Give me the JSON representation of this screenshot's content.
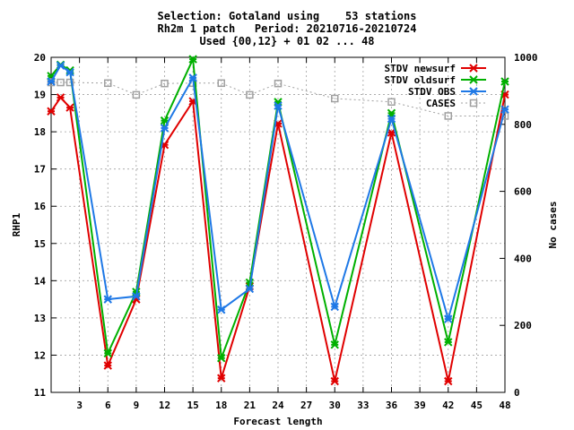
{
  "chart_data": {
    "type": "line",
    "title_lines": [
      "Selection: Gotaland using    53 stations",
      "Rh2m 1 patch   Period: 20210716-20210724",
      "Used {00,12} + 01 02 ... 48"
    ],
    "xlabel": "Forecast length",
    "ylabel": "RHP1",
    "y2label": "No cases",
    "xlim": [
      0,
      48
    ],
    "ylim": [
      11,
      20
    ],
    "y2lim": [
      0,
      1000
    ],
    "xticks": [
      3,
      6,
      9,
      12,
      15,
      18,
      21,
      24,
      27,
      30,
      33,
      36,
      39,
      42,
      45,
      48
    ],
    "yticks": [
      11,
      12,
      13,
      14,
      15,
      16,
      17,
      18,
      19,
      20
    ],
    "y2ticks": [
      0,
      200,
      400,
      600,
      800,
      1000
    ],
    "grid": true,
    "legend_position": "top-right",
    "x": [
      0,
      1,
      2,
      6,
      9,
      12,
      15,
      18,
      21,
      24,
      30,
      36,
      42,
      48
    ],
    "series": [
      {
        "name": "STDV newsurf",
        "color": "#e00000",
        "axis": "left",
        "values": [
          18.55,
          18.92,
          18.65,
          11.72,
          13.5,
          17.65,
          18.82,
          11.38,
          13.85,
          18.22,
          11.3,
          17.98,
          11.3,
          19.0
        ]
      },
      {
        "name": "STDV oldsurf",
        "color": "#00b000",
        "axis": "left",
        "values": [
          19.5,
          19.8,
          19.65,
          12.05,
          13.7,
          18.3,
          19.95,
          11.92,
          13.95,
          18.8,
          12.28,
          18.5,
          12.35,
          19.35
        ]
      },
      {
        "name": "STDV OBS",
        "color": "#1e78e6",
        "axis": "left",
        "values": [
          19.35,
          19.78,
          19.6,
          13.5,
          13.58,
          18.1,
          19.45,
          13.22,
          13.78,
          18.7,
          13.3,
          18.35,
          12.97,
          18.6
        ]
      },
      {
        "name": "CASES",
        "color": "#a0a0a0",
        "axis": "right",
        "values": [
          925,
          925,
          925,
          923,
          888,
          922,
          923,
          923,
          888,
          922,
          877,
          867,
          825,
          825
        ]
      }
    ]
  }
}
